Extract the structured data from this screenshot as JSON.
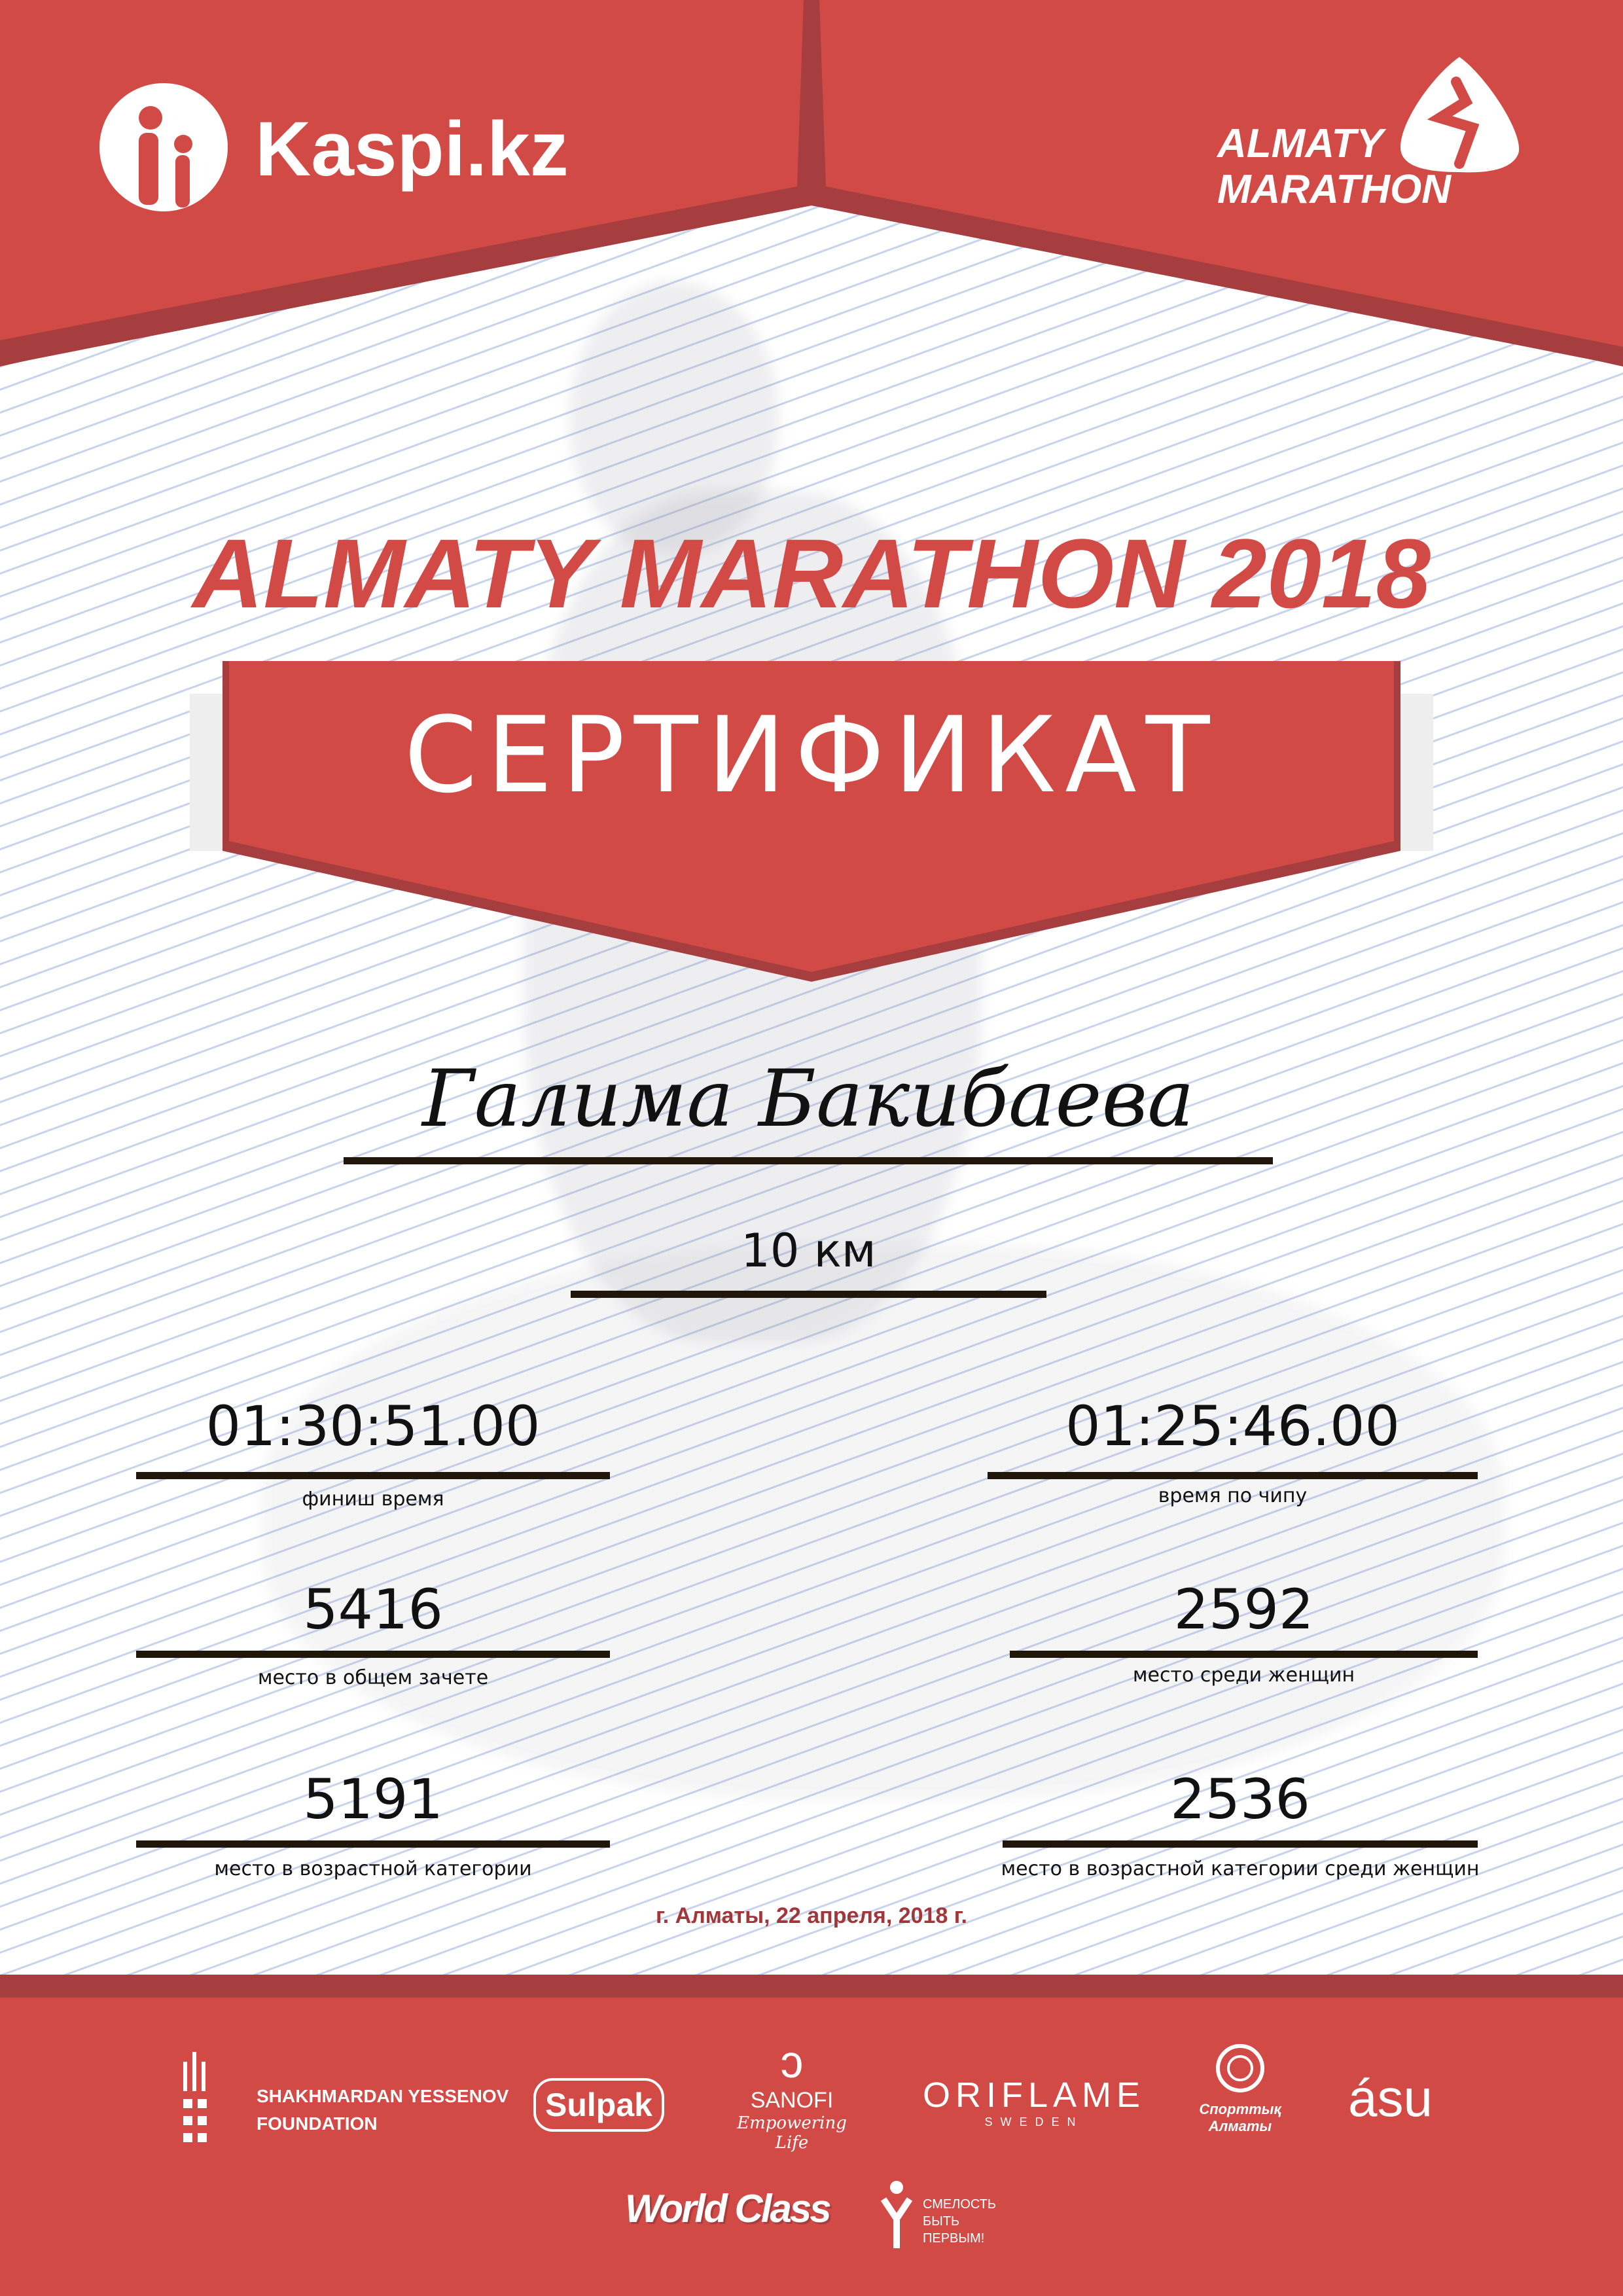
{
  "header": {
    "left_logo": "Kaspi.kz",
    "right_logo_line1": "ALMATY",
    "right_logo_line2": "MARATHON"
  },
  "title": "ALMATY MARATHON 2018",
  "banner": "СЕРТИФИКАТ",
  "participant_name": "Галима Бакибаева",
  "distance": "10 км",
  "results": {
    "finish_time": {
      "value": "01:30:51.00",
      "label": "финиш время"
    },
    "chip_time": {
      "value": "01:25:46.00",
      "label": "время по чипу"
    },
    "overall_place": {
      "value": "5416",
      "label": "место в общем зачете"
    },
    "women_place": {
      "value": "2592",
      "label": "место среди женщин"
    },
    "age_place": {
      "value": "5191",
      "label": "место в возрастной категории"
    },
    "age_women_place": {
      "value": "2536",
      "label": "место в возрастной категории среди женщин"
    }
  },
  "date_line": "г. Алматы, 22 апреля, 2018 г.",
  "sponsors": {
    "yessenov_line1": "SHAKHMARDAN YESSENOV",
    "yessenov_line2": "FOUNDATION",
    "sulpak": "Sulpak",
    "sanofi": "SANOFI",
    "sanofi_tagline": "Empowering Life",
    "oriflame": "ORIFLAME",
    "oriflame_sub": "SWEDEN",
    "sport_almaty_line1": "Спорттық",
    "sport_almaty_line2": "Алматы",
    "asu": "ásu",
    "worldclass": "World Class",
    "fund_line1": "СМЕЛОСТЬ",
    "fund_line2": "БЫТЬ",
    "fund_line3": "ПЕРВЫМ!"
  },
  "colors": {
    "red": "#d24a45",
    "dark_red": "#a63d3f",
    "date_red": "#a3363b",
    "line": "#21160a"
  }
}
